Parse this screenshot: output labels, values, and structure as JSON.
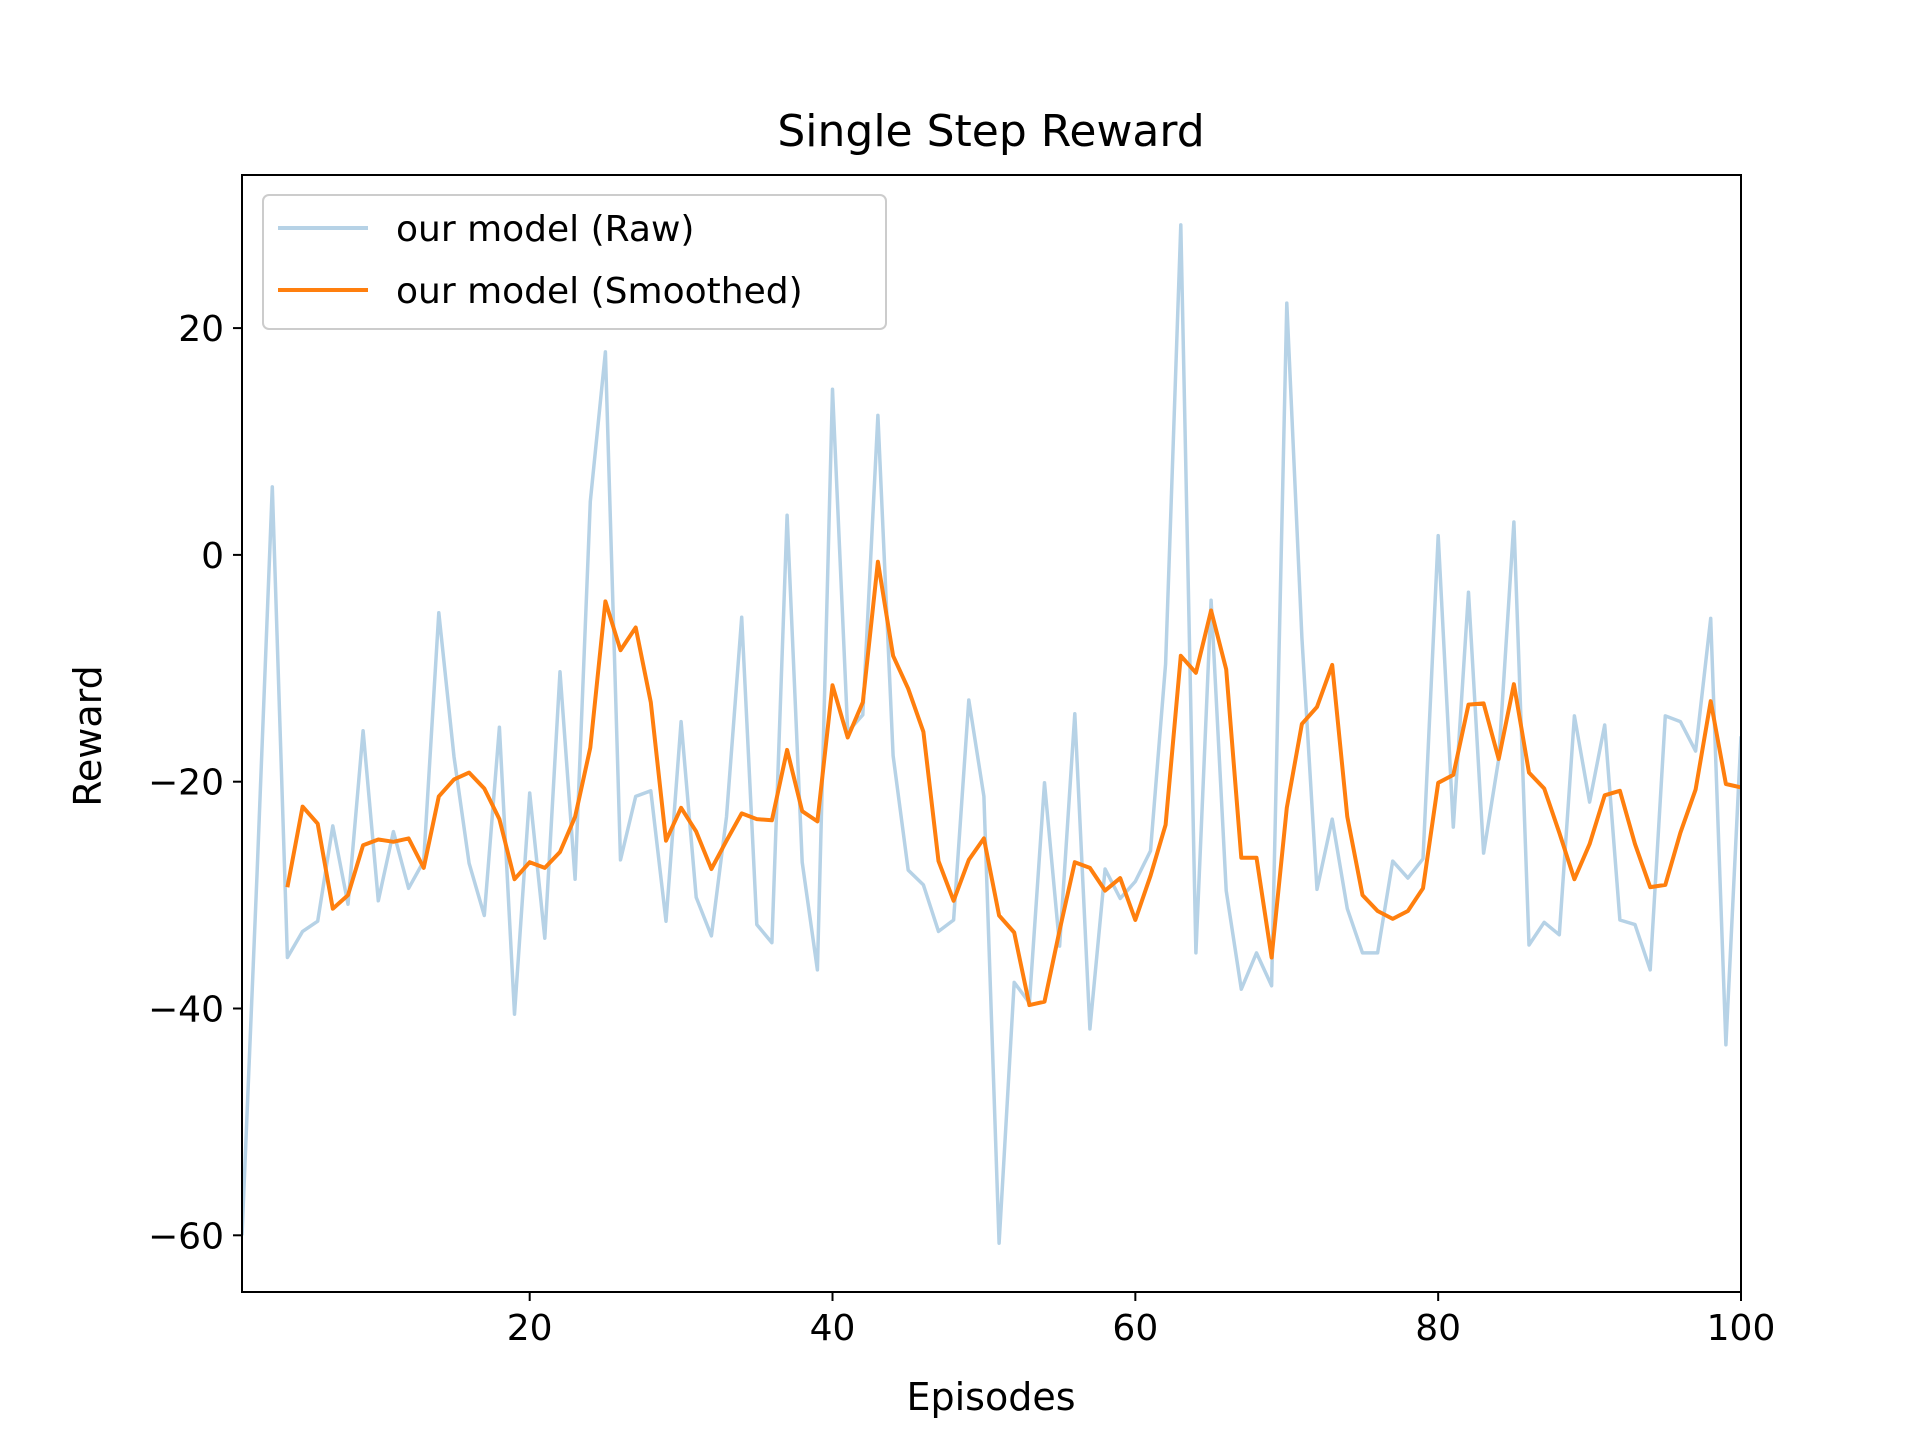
{
  "chart_data": {
    "type": "line",
    "title": "Single Step Reward",
    "xlabel": "Episodes",
    "ylabel": "Reward",
    "xlim": [
      1,
      100
    ],
    "ylim": [
      -65,
      33.5
    ],
    "x_ticks": [
      20,
      40,
      60,
      80,
      100
    ],
    "y_ticks": [
      -60,
      -40,
      -20,
      0,
      20
    ],
    "x_tick_labels": [
      "20",
      "40",
      "60",
      "80",
      "100"
    ],
    "y_tick_labels": [
      "−60",
      "−40",
      "−20",
      "0",
      "20"
    ],
    "grid": false,
    "legend_position": "top-left",
    "series": [
      {
        "name": "our model (Raw)",
        "color": "#b6d2e6",
        "x": [
          1,
          2,
          3,
          4,
          5,
          6,
          7,
          8,
          9,
          10,
          11,
          12,
          13,
          14,
          15,
          16,
          17,
          18,
          19,
          20,
          21,
          22,
          23,
          24,
          25,
          26,
          27,
          28,
          29,
          30,
          31,
          32,
          33,
          34,
          35,
          36,
          37,
          38,
          39,
          40,
          41,
          42,
          43,
          44,
          45,
          46,
          47,
          48,
          49,
          50,
          51,
          52,
          53,
          54,
          55,
          56,
          57,
          58,
          59,
          60,
          61,
          62,
          63,
          64,
          65,
          66,
          67,
          68,
          69,
          70,
          71,
          72,
          73,
          74,
          75,
          76,
          77,
          78,
          79,
          80,
          81,
          82,
          83,
          84,
          85,
          86,
          87,
          88,
          89,
          90,
          91,
          92,
          93,
          94,
          95,
          96,
          97,
          98,
          99,
          100
        ],
        "y": [
          -60,
          -28,
          6,
          -35.5,
          -33.2,
          -32.3,
          -23.9,
          -30.8,
          -15.5,
          -30.5,
          -24.4,
          -29.4,
          -27,
          -5.1,
          -17.8,
          -27.2,
          -31.8,
          -15.2,
          -40.5,
          -21,
          -33.8,
          -10.3,
          -28.6,
          4.7,
          17.9,
          -26.9,
          -21.3,
          -20.8,
          -32.3,
          -14.7,
          -30.2,
          -33.6,
          -23.1,
          -5.5,
          -32.6,
          -34.2,
          3.5,
          -27.1,
          -36.6,
          14.6,
          -15.6,
          -14.1,
          12.3,
          -17.7,
          -27.8,
          -29.1,
          -33.2,
          -32.2,
          -12.8,
          -21.3,
          -60.7,
          -37.7,
          -39.5,
          -20.1,
          -34.5,
          -14,
          -41.8,
          -27.7,
          -30.3,
          -28.8,
          -26.1,
          -9.6,
          29.1,
          -35.1,
          -4,
          -29.6,
          -38.3,
          -35.1,
          -38,
          22.2,
          -7.3,
          -29.5,
          -23.3,
          -31.2,
          -35.1,
          -35.1,
          -27,
          -28.5,
          -26.8,
          1.7,
          -24,
          -3.3,
          -26.3,
          -18,
          2.9,
          -34.4,
          -32.4,
          -33.5,
          -14.2,
          -21.8,
          -15,
          -32.2,
          -32.6,
          -36.6,
          -14.2,
          -14.7,
          -17.3,
          -5.6,
          -43.2,
          -16
        ]
      },
      {
        "name": "our model (Smoothed)",
        "color": "#ff7f0e",
        "x": [
          4,
          5,
          6,
          7,
          8,
          9,
          10,
          11,
          12,
          13,
          14,
          15,
          16,
          17,
          18,
          19,
          20,
          21,
          22,
          23,
          24,
          25,
          26,
          27,
          28,
          29,
          30,
          31,
          32,
          33,
          34,
          35,
          36,
          37,
          38,
          39,
          40,
          41,
          42,
          43,
          44,
          45,
          46,
          47,
          48,
          49,
          50,
          51,
          52,
          53,
          54,
          55,
          56,
          57,
          58,
          59,
          60,
          61,
          62,
          63,
          64,
          65,
          66,
          67,
          68,
          69,
          70,
          71,
          72,
          73,
          74,
          75,
          76,
          77,
          78,
          79,
          80,
          81,
          82,
          83,
          84,
          85,
          86,
          87,
          88,
          89,
          90,
          91,
          92,
          93,
          94,
          95,
          96,
          97,
          98,
          99,
          100
        ],
        "y": [
          -29.3,
          -22.2,
          -23.7,
          -31.2,
          -30,
          -25.6,
          -25.1,
          -25.3,
          -25,
          -27.6,
          -21.3,
          -19.8,
          -19.2,
          -20.6,
          -23.3,
          -28.6,
          -27.1,
          -27.6,
          -26.2,
          -23.1,
          -17,
          -4.1,
          -8.4,
          -6.4,
          -13,
          -25.2,
          -22.3,
          -24.4,
          -27.7,
          -25.2,
          -22.8,
          -23.3,
          -23.4,
          -17.2,
          -22.6,
          -23.5,
          -11.5,
          -16.1,
          -13,
          -0.6,
          -8.9,
          -11.8,
          -15.6,
          -27,
          -30.5,
          -26.9,
          -25,
          -31.8,
          -33.3,
          -39.7,
          -39.4,
          -33.1,
          -27.1,
          -27.6,
          -29.6,
          -28.5,
          -32.2,
          -28.3,
          -23.8,
          -8.9,
          -10.4,
          -4.9,
          -10.1,
          -26.7,
          -26.7,
          -35.5,
          -22.3,
          -14.9,
          -13.4,
          -9.7,
          -23.1,
          -30,
          -31.4,
          -32.1,
          -31.4,
          -29.4,
          -20.1,
          -19.4,
          -13.2,
          -13.1,
          -18,
          -11.4,
          -19.2,
          -20.6,
          -24.5,
          -28.6,
          -25.5,
          -21.2,
          -20.8,
          -25.5,
          -29.3,
          -29.1,
          -24.5,
          -20.7,
          -12.9,
          -20.2,
          -20.5
        ]
      }
    ]
  }
}
